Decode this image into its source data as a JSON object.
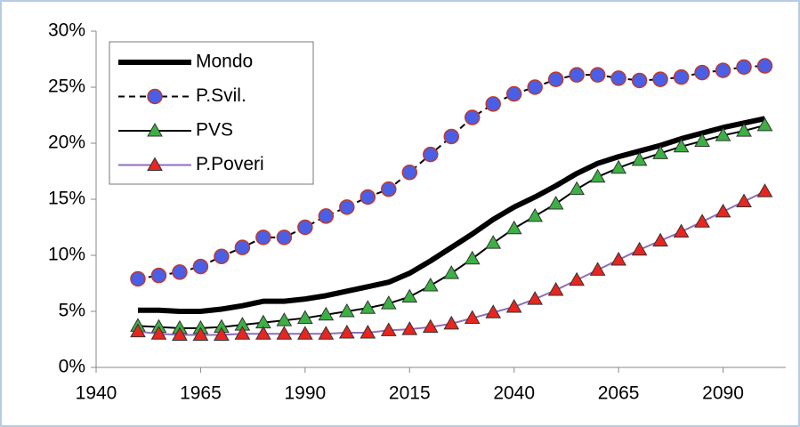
{
  "chart_data": {
    "type": "line",
    "x": [
      1950,
      1955,
      1960,
      1965,
      1970,
      1975,
      1980,
      1985,
      1990,
      1995,
      2000,
      2005,
      2010,
      2015,
      2020,
      2025,
      2030,
      2035,
      2040,
      2045,
      2050,
      2055,
      2060,
      2065,
      2070,
      2075,
      2080,
      2085,
      2090,
      2095,
      2100
    ],
    "xlim": [
      1940,
      2105
    ],
    "xticks": [
      1940,
      1965,
      1990,
      2015,
      2040,
      2065,
      2090
    ],
    "ylim": [
      0,
      30
    ],
    "yticks": [
      {
        "value": 0,
        "label": "0%"
      },
      {
        "value": 5,
        "label": "5%"
      },
      {
        "value": 10,
        "label": "10%"
      },
      {
        "value": 15,
        "label": "15%"
      },
      {
        "value": 20,
        "label": "20%"
      },
      {
        "value": 25,
        "label": "25%"
      },
      {
        "value": 30,
        "label": "30%"
      }
    ],
    "legend": "top-left",
    "series": [
      {
        "name": "Mondo",
        "color": "#000000",
        "values": [
          5.1,
          5.1,
          5.0,
          5.0,
          5.2,
          5.5,
          5.9,
          5.9,
          6.1,
          6.4,
          6.8,
          7.2,
          7.6,
          8.4,
          9.5,
          10.7,
          11.9,
          13.2,
          14.3,
          15.2,
          16.2,
          17.3,
          18.2,
          18.8,
          19.3,
          19.8,
          20.4,
          20.9,
          21.4,
          21.8,
          22.2
        ]
      },
      {
        "name": "P.Svil.",
        "color": "#000000",
        "marker": "circle",
        "marker_color": "#4a5fe6",
        "values": [
          7.9,
          8.2,
          8.5,
          9.0,
          9.9,
          10.7,
          11.6,
          11.6,
          12.5,
          13.5,
          14.3,
          15.2,
          15.9,
          17.4,
          19.0,
          20.6,
          22.3,
          23.5,
          24.4,
          25.0,
          25.7,
          26.1,
          26.1,
          25.8,
          25.6,
          25.7,
          25.9,
          26.3,
          26.5,
          26.8,
          26.9
        ]
      },
      {
        "name": "PVS",
        "color": "#000000",
        "marker": "triangle",
        "marker_color": "#3cb043",
        "values": [
          3.7,
          3.6,
          3.5,
          3.5,
          3.6,
          3.8,
          4.0,
          4.2,
          4.4,
          4.7,
          5.0,
          5.3,
          5.7,
          6.3,
          7.3,
          8.4,
          9.7,
          11.1,
          12.4,
          13.5,
          14.6,
          15.9,
          17.0,
          17.8,
          18.5,
          19.1,
          19.7,
          20.2,
          20.7,
          21.1,
          21.6
        ]
      },
      {
        "name": "P.Poveri",
        "color": "#8e6fb8",
        "marker": "triangle",
        "marker_color": "#e8251e",
        "values": [
          3.2,
          3.0,
          2.9,
          2.9,
          2.9,
          3.0,
          3.0,
          3.0,
          3.0,
          3.0,
          3.1,
          3.1,
          3.3,
          3.4,
          3.6,
          3.9,
          4.4,
          4.9,
          5.4,
          6.1,
          6.9,
          7.8,
          8.7,
          9.6,
          10.5,
          11.3,
          12.1,
          13.0,
          13.9,
          14.8,
          15.7
        ]
      }
    ]
  }
}
